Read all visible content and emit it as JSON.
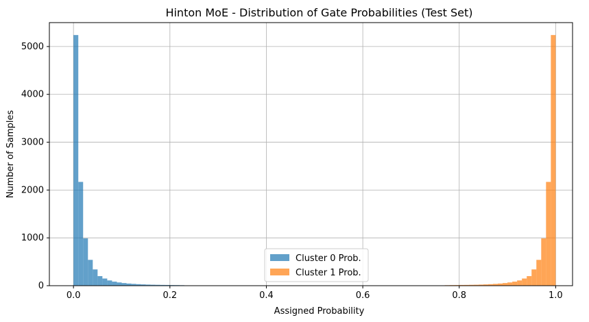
{
  "chart_data": {
    "type": "bar",
    "title": "Hinton MoE - Distribution of Gate Probabilities (Test Set)",
    "xlabel": "Assigned Probability",
    "ylabel": "Number of Samples",
    "xlim": [
      -0.05,
      1.035
    ],
    "ylim": [
      0,
      5500
    ],
    "xticks": [
      0.0,
      0.2,
      0.4,
      0.6,
      0.8,
      1.0
    ],
    "xtick_labels": [
      "0.0",
      "0.2",
      "0.4",
      "0.6",
      "0.8",
      "1.0"
    ],
    "yticks": [
      0,
      1000,
      2000,
      3000,
      4000,
      5000
    ],
    "ytick_labels": [
      "0",
      "1000",
      "2000",
      "3000",
      "4000",
      "5000"
    ],
    "grid": true,
    "legend_position": "bottom-center",
    "bin_width": 0.01,
    "series": [
      {
        "name": "Cluster 0 Prob.",
        "color": "#1f77b4",
        "alpha": 0.7,
        "bin_start": 0.0,
        "counts": [
          5240,
          2170,
          990,
          540,
          340,
          200,
          150,
          110,
          85,
          68,
          55,
          45,
          38,
          32,
          27,
          23,
          20,
          18,
          16,
          15,
          13,
          12,
          10
        ]
      },
      {
        "name": "Cluster 1 Prob.",
        "color": "#ff7f0e",
        "alpha": 0.7,
        "bin_start": 0.77,
        "counts": [
          10,
          12,
          13,
          15,
          16,
          18,
          20,
          23,
          27,
          32,
          38,
          45,
          55,
          68,
          85,
          110,
          150,
          200,
          340,
          540,
          990,
          2170,
          5240
        ]
      }
    ]
  }
}
